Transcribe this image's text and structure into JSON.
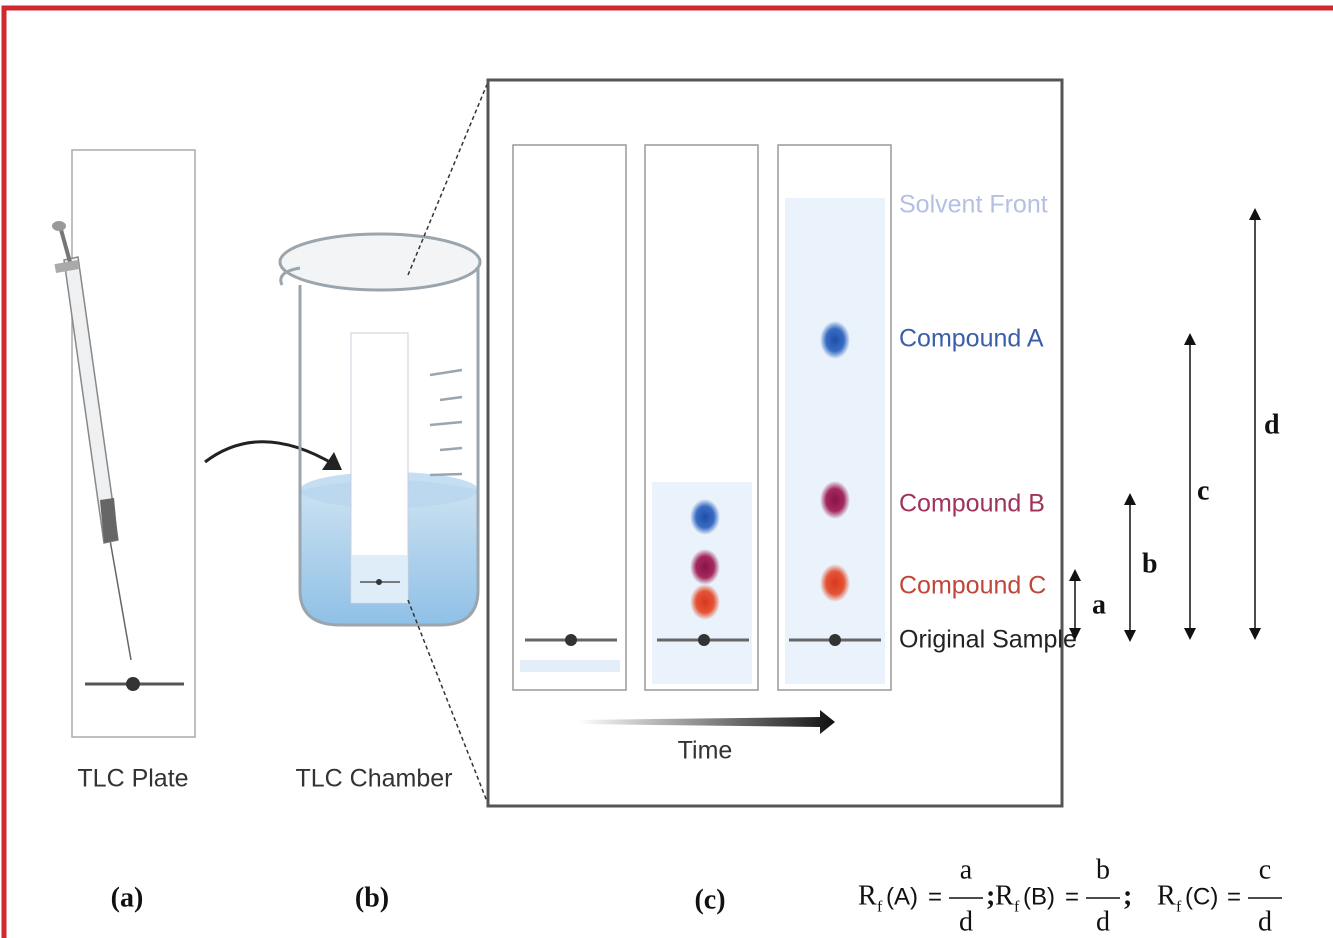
{
  "diagram": {
    "panels": {
      "a": {
        "caption": "TLC Plate",
        "tag": "(a)"
      },
      "b": {
        "caption": "TLC Chamber",
        "tag": "(b)"
      },
      "c": {
        "tag": "(c)",
        "time_label": "Time"
      }
    },
    "plate_labels": [
      "Solvent Front",
      "Compound A",
      "Compound B",
      "Compound C",
      "Original Sample"
    ],
    "distances": [
      "a",
      "b",
      "c",
      "d"
    ],
    "formulas": [
      {
        "symbol": "R",
        "subscript": "f",
        "argument": "(A)",
        "equals": "=",
        "numerator": "a",
        "denominator": "d"
      },
      {
        "symbol": "R",
        "subscript": "f",
        "argument": "(B)",
        "equals": "=",
        "numerator": "b",
        "denominator": "d"
      },
      {
        "symbol": "R",
        "subscript": "f",
        "argument": "(C)",
        "equals": "=",
        "numerator": "c",
        "denominator": "d"
      }
    ],
    "separator": ";"
  }
}
